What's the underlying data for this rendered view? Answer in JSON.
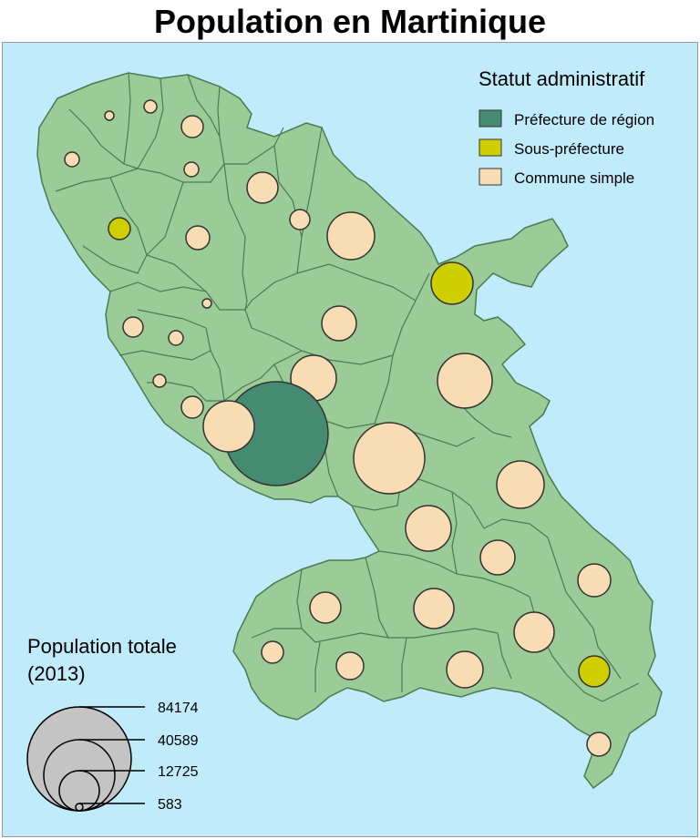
{
  "title": "Population en Martinique",
  "colors": {
    "sea": "#bfebfb",
    "land": "#9bcc98",
    "border": "#4b7a52",
    "outline": "#333333",
    "prefecture": "#458b71",
    "sous_prefecture": "#cfcf00",
    "commune": "#f8dcb4",
    "legend_circle": "#c4c4c4"
  },
  "legend_statut": {
    "title": "Statut administratif",
    "items": [
      {
        "label": "Préfecture de région",
        "color": "#458b71"
      },
      {
        "label": "Sous-préfecture",
        "color": "#cfcf00"
      },
      {
        "label": "Commune simple",
        "color": "#f8dcb4"
      }
    ]
  },
  "legend_population": {
    "title_line1": "Population totale",
    "title_line2": "(2013)",
    "values": [
      84174,
      40589,
      12725,
      583
    ],
    "labels": [
      "84174",
      "40589",
      "12725",
      "583"
    ]
  }
}
